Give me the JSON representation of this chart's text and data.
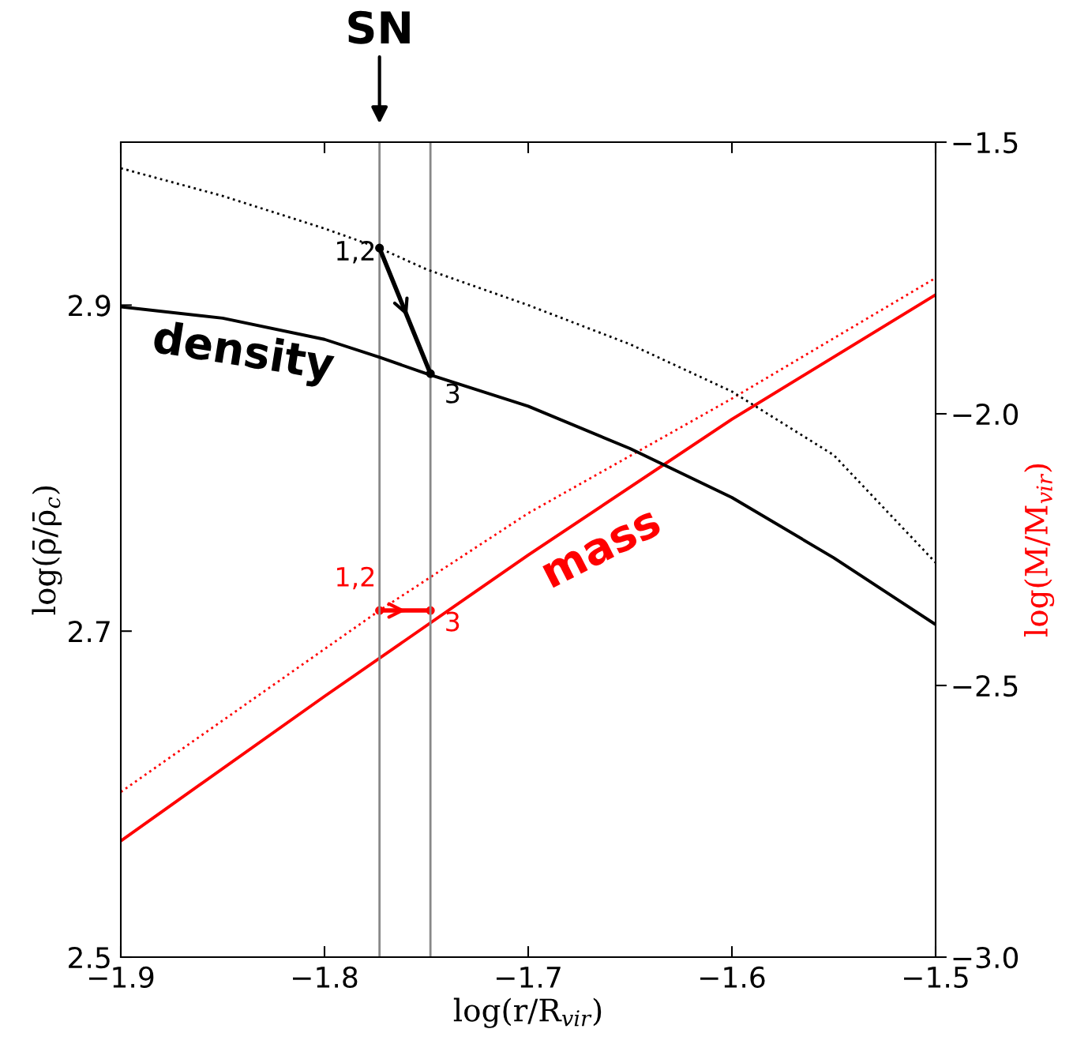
{
  "chart_data": {
    "type": "line",
    "xlabel": "log(r/R$_{vir}$)",
    "ylabel": "log(ρ̄/ρ̄$_{c}$)",
    "y2label": "log(M/M$_{vir}$)",
    "xlim": [
      -1.9,
      -1.5
    ],
    "xticks": [
      -1.9,
      -1.8,
      -1.7,
      -1.6,
      -1.5
    ],
    "ylim": [
      2.5,
      3.0
    ],
    "yticks": [
      2.5,
      2.7,
      2.9
    ],
    "y2lim": [
      -3.0,
      -1.5
    ],
    "y2ticks": [
      {
        "value": -3.0,
        "label": "−3.0"
      },
      {
        "value": -2.5,
        "label": "−2.5"
      },
      {
        "value": -2.0,
        "label": "−2.0"
      },
      {
        "value": -1.5,
        "label": "−1.5"
      }
    ],
    "grid": false,
    "series": [
      {
        "color": "#000000",
        "line_style": "solid",
        "marker": "none",
        "x": [
          -1.9,
          -1.85,
          -1.8,
          -1.773,
          -1.75,
          -1.7,
          -1.65,
          -1.6,
          -1.55,
          -1.5
        ],
        "values": [
          2.899,
          2.892,
          2.879,
          2.868,
          2.858,
          2.838,
          2.812,
          2.782,
          2.745,
          2.704
        ]
      },
      {
        "color": "#000000",
        "line_style": "dotted",
        "marker": "none",
        "x": [
          -1.9,
          -1.85,
          -1.8,
          -1.773,
          -1.75,
          -1.7,
          -1.65,
          -1.6,
          -1.55,
          -1.5
        ],
        "values": [
          2.984,
          2.967,
          2.947,
          2.935,
          2.922,
          2.9,
          2.876,
          2.847,
          2.808,
          2.742
        ]
      },
      {
        "color": "#ff0000",
        "line_style": "solid",
        "marker": "none",
        "axis": "y2",
        "x": [
          -1.9,
          -1.8,
          -1.7,
          -1.6,
          -1.5
        ],
        "values": [
          -2.786,
          -2.52,
          -2.26,
          -2.01,
          -1.781
        ]
      },
      {
        "color": "#ff0000",
        "line_style": "dotted",
        "marker": "none",
        "axis": "y2",
        "x": [
          -1.9,
          -1.773,
          -1.7,
          -1.6,
          -1.5
        ],
        "values": [
          -2.696,
          -2.362,
          -2.183,
          -1.972,
          -1.75
        ]
      },
      {
        "color": "#000000",
        "line_style": "solid",
        "marker": "circle",
        "x": [
          -1.773,
          -1.748
        ],
        "values": [
          2.935,
          2.858
        ]
      },
      {
        "color": "#ff0000",
        "line_style": "solid",
        "marker": "circle",
        "axis": "y2",
        "x": [
          -1.773,
          -1.748
        ],
        "values": [
          -2.362,
          -2.362
        ]
      }
    ],
    "annotations": [
      "1,2",
      "3",
      "1,2",
      "3",
      "density",
      "mass"
    ],
    "ref_lines": [
      {
        "axis": "x",
        "value": -1.773,
        "label": "SN",
        "color": "#888888"
      },
      {
        "axis": "x",
        "value": -1.748,
        "color": "#888888"
      }
    ]
  }
}
